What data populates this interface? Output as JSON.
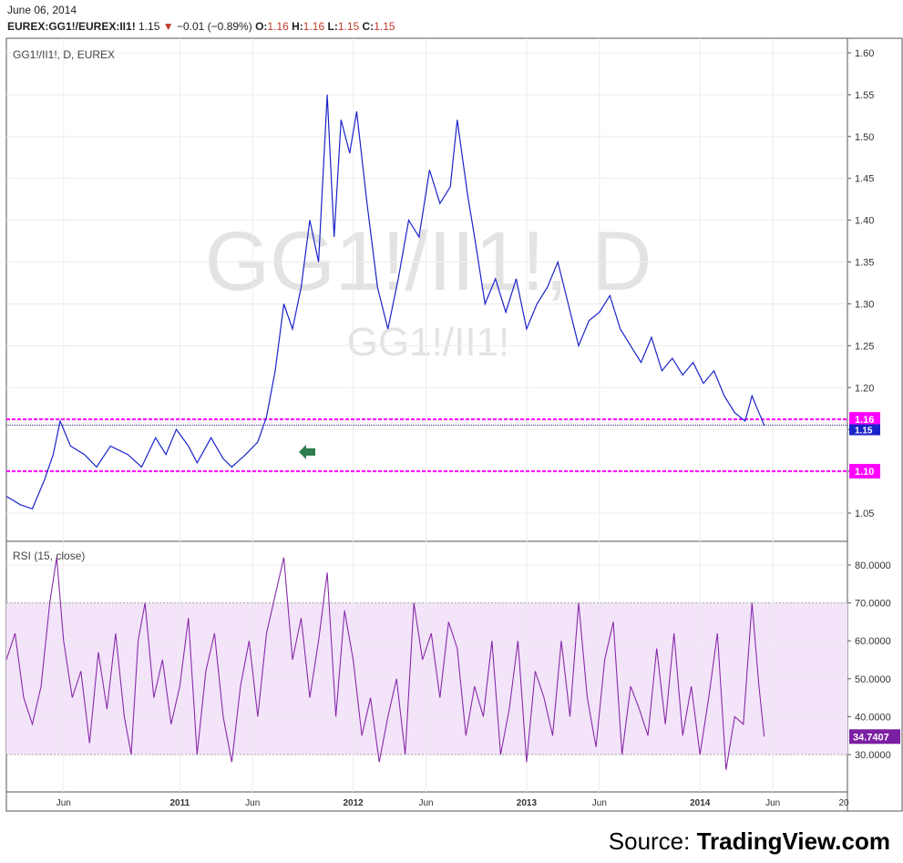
{
  "header": {
    "date": "June 06, 2014",
    "symbol": "EUREX:GG1!/EUREX:II1!",
    "last": "1.15",
    "change": "−0.01 (−0.89%)",
    "o_label": "O:",
    "o_val": "1.16",
    "h_label": "H:",
    "h_val": "1.16",
    "l_label": "L:",
    "l_val": "1.15",
    "c_label": "C:",
    "c_val": "1.15"
  },
  "source": {
    "prefix": "Source: ",
    "brand": "TradingView.com"
  },
  "colors": {
    "price_line": "#1a23c9",
    "rsi_line": "#8a2aa8",
    "rsi_band": "#f3e4fa",
    "hline": "#ff00ff",
    "arrow": "#2e7d4f"
  },
  "chart_data": [
    {
      "type": "line",
      "title": "GG1!/II1!, D, EUREX",
      "watermark": "GG1!/II1!, D",
      "watermark_sub": "GG1!/II1!",
      "ylim": [
        1.02,
        1.62
      ],
      "ytick_labels": [
        "1.60",
        "1.55",
        "1.50",
        "1.45",
        "1.40",
        "1.35",
        "1.30",
        "1.25",
        "1.20",
        "1.15",
        "1.10",
        "1.05"
      ],
      "x_tick_labels": [
        "Jun",
        "2011",
        "Jun",
        "2012",
        "Jun",
        "2013",
        "Jun",
        "2014",
        "Jun",
        "20"
      ],
      "grid": true,
      "hlines": [
        {
          "label": "1.16",
          "value": 1.162
        },
        {
          "label": "1.10",
          "value": 1.1
        }
      ],
      "last_value": {
        "label": "1.15",
        "value": 1.155
      },
      "annotation_arrow": "left-arrow",
      "series": [
        {
          "values": [
            [
              2010.0,
              1.07
            ],
            [
              2010.08,
              1.06
            ],
            [
              2010.15,
              1.055
            ],
            [
              2010.22,
              1.09
            ],
            [
              2010.27,
              1.12
            ],
            [
              2010.31,
              1.16
            ],
            [
              2010.37,
              1.13
            ],
            [
              2010.45,
              1.12
            ],
            [
              2010.52,
              1.105
            ],
            [
              2010.6,
              1.13
            ],
            [
              2010.7,
              1.12
            ],
            [
              2010.78,
              1.105
            ],
            [
              2010.86,
              1.14
            ],
            [
              2010.92,
              1.12
            ],
            [
              2010.98,
              1.15
            ],
            [
              2011.05,
              1.13
            ],
            [
              2011.1,
              1.11
            ],
            [
              2011.18,
              1.14
            ],
            [
              2011.25,
              1.115
            ],
            [
              2011.3,
              1.105
            ],
            [
              2011.38,
              1.12
            ],
            [
              2011.45,
              1.135
            ],
            [
              2011.5,
              1.165
            ],
            [
              2011.55,
              1.22
            ],
            [
              2011.6,
              1.3
            ],
            [
              2011.65,
              1.27
            ],
            [
              2011.7,
              1.32
            ],
            [
              2011.75,
              1.4
            ],
            [
              2011.8,
              1.35
            ],
            [
              2011.85,
              1.55
            ],
            [
              2011.89,
              1.38
            ],
            [
              2011.93,
              1.52
            ],
            [
              2011.98,
              1.48
            ],
            [
              2012.02,
              1.53
            ],
            [
              2012.08,
              1.42
            ],
            [
              2012.14,
              1.32
            ],
            [
              2012.2,
              1.27
            ],
            [
              2012.26,
              1.33
            ],
            [
              2012.32,
              1.4
            ],
            [
              2012.38,
              1.38
            ],
            [
              2012.44,
              1.46
            ],
            [
              2012.5,
              1.42
            ],
            [
              2012.56,
              1.44
            ],
            [
              2012.6,
              1.52
            ],
            [
              2012.66,
              1.43
            ],
            [
              2012.7,
              1.38
            ],
            [
              2012.76,
              1.3
            ],
            [
              2012.82,
              1.33
            ],
            [
              2012.88,
              1.29
            ],
            [
              2012.94,
              1.33
            ],
            [
              2013.0,
              1.27
            ],
            [
              2013.06,
              1.3
            ],
            [
              2013.12,
              1.32
            ],
            [
              2013.18,
              1.35
            ],
            [
              2013.24,
              1.3
            ],
            [
              2013.3,
              1.25
            ],
            [
              2013.36,
              1.28
            ],
            [
              2013.42,
              1.29
            ],
            [
              2013.48,
              1.31
            ],
            [
              2013.54,
              1.27
            ],
            [
              2013.6,
              1.25
            ],
            [
              2013.66,
              1.23
            ],
            [
              2013.72,
              1.26
            ],
            [
              2013.78,
              1.22
            ],
            [
              2013.84,
              1.235
            ],
            [
              2013.9,
              1.215
            ],
            [
              2013.96,
              1.23
            ],
            [
              2014.02,
              1.205
            ],
            [
              2014.08,
              1.22
            ],
            [
              2014.14,
              1.19
            ],
            [
              2014.2,
              1.17
            ],
            [
              2014.26,
              1.16
            ],
            [
              2014.3,
              1.19
            ],
            [
              2014.34,
              1.17
            ],
            [
              2014.37,
              1.155
            ]
          ]
        }
      ]
    },
    {
      "type": "line",
      "title": "RSI (15, close)",
      "ylim": [
        22,
        86
      ],
      "ytick_labels": [
        "80.0000",
        "70.0000",
        "60.0000",
        "50.0000",
        "40.0000",
        "30.0000"
      ],
      "band": [
        30,
        70
      ],
      "last_value": {
        "label": "34.7407",
        "value": 34.74
      },
      "series": [
        {
          "values": [
            [
              2010.0,
              55
            ],
            [
              2010.05,
              62
            ],
            [
              2010.1,
              45
            ],
            [
              2010.15,
              38
            ],
            [
              2010.2,
              48
            ],
            [
              2010.25,
              70
            ],
            [
              2010.29,
              82
            ],
            [
              2010.33,
              60
            ],
            [
              2010.38,
              45
            ],
            [
              2010.43,
              52
            ],
            [
              2010.48,
              33
            ],
            [
              2010.53,
              57
            ],
            [
              2010.58,
              42
            ],
            [
              2010.63,
              62
            ],
            [
              2010.68,
              40
            ],
            [
              2010.72,
              30
            ],
            [
              2010.76,
              60
            ],
            [
              2010.8,
              70
            ],
            [
              2010.85,
              45
            ],
            [
              2010.9,
              55
            ],
            [
              2010.95,
              38
            ],
            [
              2011.0,
              48
            ],
            [
              2011.05,
              66
            ],
            [
              2011.1,
              30
            ],
            [
              2011.15,
              52
            ],
            [
              2011.2,
              62
            ],
            [
              2011.25,
              40
            ],
            [
              2011.3,
              28
            ],
            [
              2011.35,
              48
            ],
            [
              2011.4,
              60
            ],
            [
              2011.45,
              40
            ],
            [
              2011.5,
              62
            ],
            [
              2011.55,
              72
            ],
            [
              2011.6,
              82
            ],
            [
              2011.65,
              55
            ],
            [
              2011.7,
              66
            ],
            [
              2011.75,
              45
            ],
            [
              2011.8,
              60
            ],
            [
              2011.85,
              78
            ],
            [
              2011.9,
              40
            ],
            [
              2011.95,
              68
            ],
            [
              2012.0,
              55
            ],
            [
              2012.05,
              35
            ],
            [
              2012.1,
              45
            ],
            [
              2012.15,
              28
            ],
            [
              2012.2,
              40
            ],
            [
              2012.25,
              50
            ],
            [
              2012.3,
              30
            ],
            [
              2012.35,
              70
            ],
            [
              2012.4,
              55
            ],
            [
              2012.45,
              62
            ],
            [
              2012.5,
              45
            ],
            [
              2012.55,
              65
            ],
            [
              2012.6,
              58
            ],
            [
              2012.65,
              35
            ],
            [
              2012.7,
              48
            ],
            [
              2012.75,
              40
            ],
            [
              2012.8,
              60
            ],
            [
              2012.85,
              30
            ],
            [
              2012.9,
              42
            ],
            [
              2012.95,
              60
            ],
            [
              2013.0,
              28
            ],
            [
              2013.05,
              52
            ],
            [
              2013.1,
              45
            ],
            [
              2013.15,
              35
            ],
            [
              2013.2,
              60
            ],
            [
              2013.25,
              40
            ],
            [
              2013.3,
              70
            ],
            [
              2013.35,
              45
            ],
            [
              2013.4,
              32
            ],
            [
              2013.45,
              55
            ],
            [
              2013.5,
              65
            ],
            [
              2013.55,
              30
            ],
            [
              2013.6,
              48
            ],
            [
              2013.65,
              42
            ],
            [
              2013.7,
              35
            ],
            [
              2013.75,
              58
            ],
            [
              2013.8,
              38
            ],
            [
              2013.85,
              62
            ],
            [
              2013.9,
              35
            ],
            [
              2013.95,
              48
            ],
            [
              2014.0,
              30
            ],
            [
              2014.05,
              45
            ],
            [
              2014.1,
              62
            ],
            [
              2014.15,
              26
            ],
            [
              2014.2,
              40
            ],
            [
              2014.25,
              38
            ],
            [
              2014.3,
              70
            ],
            [
              2014.34,
              48
            ],
            [
              2014.37,
              34.74
            ]
          ]
        }
      ]
    }
  ]
}
